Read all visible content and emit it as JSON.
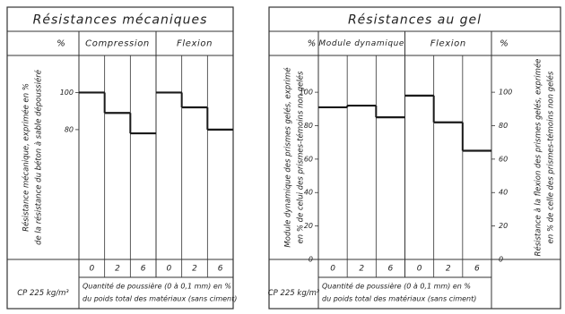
{
  "chart_data": [
    {
      "type": "step",
      "title": "Résistances mécaniques",
      "corner_label": "%",
      "ylabel": [
        "Résistance mécanique, exprimée en %",
        "de la résistance du béton à sable dépoussiéré"
      ],
      "categories": [
        "0",
        "2",
        "6"
      ],
      "series": [
        {
          "name": "Compression",
          "color": "#1a1a1a",
          "values": [
            100,
            89,
            78
          ]
        },
        {
          "name": "Flexion",
          "color": "#1a1a1a",
          "values": [
            100,
            92,
            80
          ]
        }
      ],
      "ylim": [
        10,
        120
      ],
      "yticks": [
        80,
        100
      ],
      "footer_label": "CP 225 kg/m³",
      "xlabel": [
        "Quantité de poussière (0 à 0,1 mm) en %",
        "du poids total des matériaux (sans ciment)"
      ]
    },
    {
      "type": "step",
      "title": "Résistances au gel",
      "corner_label": "%",
      "right_corner_label": "%",
      "ylabel": [
        "Module dynamique des prismes gelés, exprimé",
        "en % de celui des prismes-témoins non gelés"
      ],
      "y2label": [
        "Résistance à la flexion des prismes gelés, exprimée",
        "en % de celle des prismes-témoins non gelés"
      ],
      "categories": [
        "0",
        "2",
        "6"
      ],
      "series": [
        {
          "name": "Module dynamique",
          "color": "#1a1a1a",
          "values": [
            91,
            92,
            85
          ]
        },
        {
          "name": "Flexion",
          "color": "#1a1a1a",
          "axis": "y2",
          "values": [
            98,
            82,
            65
          ]
        }
      ],
      "ylim": [
        0,
        122
      ],
      "yticks": [
        0,
        20,
        40,
        60,
        80,
        100
      ],
      "footer_label": "CP 225 kg/m³",
      "xlabel": [
        "Quantité de poussière (0 à 0,1 mm) en %",
        "du poids total des matériaux (sans ciment)"
      ]
    }
  ]
}
